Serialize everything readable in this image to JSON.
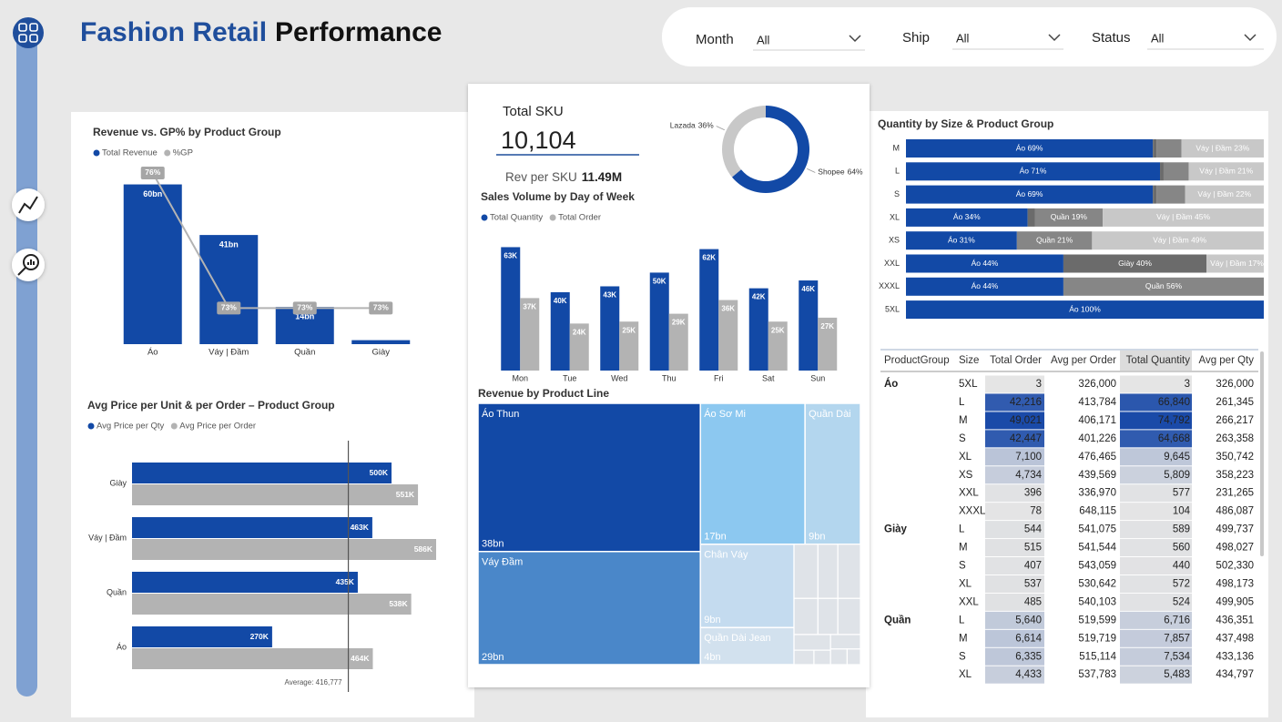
{
  "header": {
    "title_highlight": "Fashion Retail",
    "title_rest": "Performance"
  },
  "filters": [
    {
      "label": "Month",
      "value": "All"
    },
    {
      "label": "Ship",
      "value": "All"
    },
    {
      "label": "Status",
      "value": "All"
    }
  ],
  "kpi": {
    "title": "Total SKU",
    "value": "10,104",
    "sub_label": "Rev per SKU",
    "sub_value": "11.49M"
  },
  "chart_data": [
    {
      "type": "combo",
      "title": "Revenue vs. GP% by Product Group",
      "categories": [
        "Áo",
        "Váy | Đầm",
        "Quần",
        "Giày"
      ],
      "series": [
        {
          "name": "Total Revenue",
          "color": "#1249a6",
          "type": "bar",
          "values": [
            60,
            41,
            14,
            1.5
          ],
          "value_labels": [
            "60bn",
            "41bn",
            "14bn",
            null
          ]
        },
        {
          "name": "%GP",
          "color": "#b3b3b3",
          "type": "line",
          "axis": "y2",
          "values": [
            76,
            73,
            73,
            73
          ],
          "value_labels": [
            "76%",
            "73%",
            "73%",
            "73%"
          ]
        }
      ],
      "ylim": [
        0,
        66
      ],
      "y2lim": [
        72.2,
        76.1
      ],
      "legend": "top-left"
    },
    {
      "type": "hbar",
      "title": "Avg Price per Unit & per Order – Product Group",
      "categories": [
        "Giày",
        "Váy | Đầm",
        "Quần",
        "Áo"
      ],
      "series": [
        {
          "name": "Avg Price per Qty",
          "color": "#1249a6",
          "values": [
            500000,
            463000,
            435000,
            270000
          ],
          "value_labels": [
            "500K",
            "463K",
            "435K",
            "270K"
          ]
        },
        {
          "name": "Avg Price per Order",
          "color": "#b3b3b3",
          "values": [
            551000,
            586000,
            538000,
            464000
          ],
          "value_labels": [
            "551K",
            "586K",
            "538K",
            "464K"
          ]
        }
      ],
      "xlim": [
        0,
        600000
      ],
      "reference_line": {
        "value": 416777,
        "label": "Average: 416,777"
      },
      "legend": "top-left"
    },
    {
      "type": "donut",
      "categories": [
        "Lazada",
        "Shopee"
      ],
      "values": [
        36,
        64
      ],
      "value_labels": [
        "36%",
        "64%"
      ],
      "colors": [
        "#c8c8c8",
        "#1249a6"
      ]
    },
    {
      "type": "grouped_bar",
      "title": "Sales Volume by Day of Week",
      "categories": [
        "Mon",
        "Tue",
        "Wed",
        "Thu",
        "Fri",
        "Sat",
        "Sun"
      ],
      "series": [
        {
          "name": "Total Quantity",
          "color": "#1249a6",
          "values": [
            63000,
            40000,
            43000,
            50000,
            62000,
            42000,
            46000
          ],
          "value_labels": [
            "63K",
            "40K",
            "43K",
            "50K",
            "62K",
            "42K",
            "46K"
          ]
        },
        {
          "name": "Total Order",
          "color": "#b3b3b3",
          "values": [
            37000,
            24000,
            25000,
            29000,
            36000,
            25000,
            27000
          ],
          "value_labels": [
            "37K",
            "24K",
            "25K",
            "29K",
            "36K",
            "25K",
            "27K"
          ]
        }
      ],
      "ylim": [
        0,
        66000
      ],
      "legend": "top-left"
    },
    {
      "type": "treemap",
      "title": "Revenue by Product Line",
      "categories": [
        "Áo Thun",
        "Váy Đầm",
        "Áo Sơ Mi",
        "Quần Dài",
        "Chân Váy",
        "Quần Dài Jean"
      ],
      "values": [
        38,
        29,
        17,
        9,
        9,
        4
      ],
      "value_labels": [
        "38bn",
        "29bn",
        "17bn",
        "9bn",
        "9bn",
        "4bn"
      ],
      "colors": [
        "#1249a6",
        "#4a87c9",
        "#8cc8f0",
        "#b3d6ee",
        "#c4dbef",
        "#d2e1ee"
      ]
    },
    {
      "type": "stacked_hbar_100",
      "title": "Quantity by Size & Product Group",
      "categories": [
        "M",
        "L",
        "S",
        "XL",
        "XS",
        "XXL",
        "XXXL",
        "5XL"
      ],
      "series": [
        {
          "name": "Áo",
          "color": "#1249a6",
          "values": [
            69,
            71,
            69,
            34,
            31,
            44,
            44,
            100
          ],
          "value_labels": [
            "Áo 69%",
            "Áo 71%",
            "Áo 69%",
            "Áo 34%",
            "Áo 31%",
            "Áo 44%",
            "Áo 44%",
            "Áo 100%"
          ]
        },
        {
          "name": "Giày",
          "color": "#6b6b6b",
          "values": [
            1,
            1,
            1,
            2,
            null,
            40,
            null,
            null
          ],
          "value_labels": [
            null,
            null,
            null,
            null,
            null,
            "Giày 40%",
            null,
            null
          ]
        },
        {
          "name": "Quần",
          "color": "#868686",
          "values": [
            7,
            7,
            8,
            19,
            21,
            null,
            56,
            null
          ],
          "value_labels": [
            null,
            null,
            null,
            "Quần 19%",
            "Quần 21%",
            null,
            "Quần 56%",
            null
          ]
        },
        {
          "name": "Váy | Đầm",
          "color": "#c8c8c8",
          "values": [
            23,
            21,
            22,
            45,
            49,
            17,
            null,
            null
          ],
          "value_labels": [
            "Váy | Đầm 23%",
            "Váy | Đầm 21%",
            "Váy | Đầm 22%",
            "Váy | Đầm 45%",
            "Váy | Đầm 49%",
            "Váy | Đầm 17%",
            null,
            null
          ]
        }
      ],
      "xlim": [
        0,
        100
      ]
    }
  ],
  "table": {
    "columns": [
      "ProductGroup",
      "Size",
      "Total Order",
      "Avg per Order",
      "Total Quantity",
      "Avg per Qty"
    ],
    "groups": [
      {
        "name": "Áo",
        "rows": [
          [
            "5XL",
            "3",
            "326,000",
            "3",
            "326,000"
          ],
          [
            "L",
            "42,216",
            "413,784",
            "66,840",
            "261,345"
          ],
          [
            "M",
            "49,021",
            "406,171",
            "74,792",
            "266,217"
          ],
          [
            "S",
            "42,447",
            "401,226",
            "64,668",
            "263,358"
          ],
          [
            "XL",
            "7,100",
            "476,465",
            "9,645",
            "350,742"
          ],
          [
            "XS",
            "4,734",
            "439,569",
            "5,809",
            "358,223"
          ],
          [
            "XXL",
            "396",
            "336,970",
            "577",
            "231,265"
          ],
          [
            "XXXL",
            "78",
            "648,115",
            "104",
            "486,087"
          ]
        ]
      },
      {
        "name": "Giày",
        "rows": [
          [
            "L",
            "544",
            "541,075",
            "589",
            "499,737"
          ],
          [
            "M",
            "515",
            "541,544",
            "560",
            "498,027"
          ],
          [
            "S",
            "407",
            "543,059",
            "440",
            "502,330"
          ],
          [
            "XL",
            "537",
            "530,642",
            "572",
            "498,173"
          ],
          [
            "XXL",
            "485",
            "540,103",
            "524",
            "499,905"
          ]
        ]
      },
      {
        "name": "Quần",
        "rows": [
          [
            "L",
            "5,640",
            "519,599",
            "6,716",
            "436,351"
          ],
          [
            "M",
            "6,614",
            "519,719",
            "7,857",
            "437,498"
          ],
          [
            "S",
            "6,335",
            "515,114",
            "7,534",
            "433,136"
          ],
          [
            "XL",
            "4,433",
            "537,783",
            "5,483",
            "434,797"
          ]
        ]
      }
    ]
  }
}
